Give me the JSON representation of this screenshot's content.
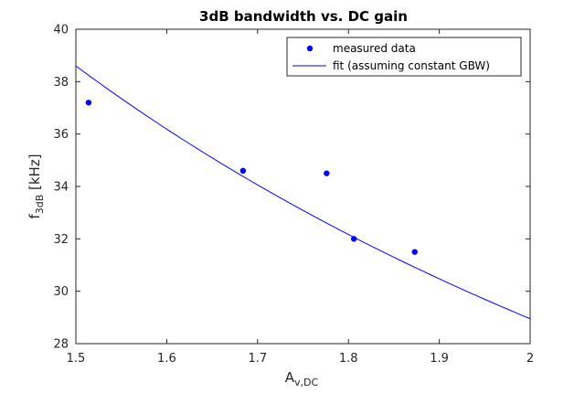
{
  "chart_data": {
    "type": "scatter",
    "title": "3dB bandwidth vs. DC gain",
    "xlabel": {
      "main": "A",
      "sub": "v,DC"
    },
    "ylabel": {
      "main": "f",
      "sub": "3dB",
      "suffix": " [kHz]"
    },
    "xlim": [
      1.5,
      2.0
    ],
    "ylim": [
      28,
      40
    ],
    "xticks": [
      1.5,
      1.6,
      1.7,
      1.8,
      1.9,
      2.0
    ],
    "xtick_labels": [
      "1.5",
      "1.6",
      "1.7",
      "1.8",
      "1.9",
      "2"
    ],
    "yticks": [
      28,
      30,
      32,
      34,
      36,
      38,
      40
    ],
    "ytick_labels": [
      "28",
      "30",
      "32",
      "34",
      "36",
      "38",
      "40"
    ],
    "grid": false,
    "legend_position": "top-right",
    "series": [
      {
        "name": "measured data",
        "kind": "markers",
        "color": "#0000ff",
        "x": [
          1.514,
          1.684,
          1.776,
          1.806,
          1.873
        ],
        "y": [
          37.2,
          34.6,
          34.5,
          32.0,
          31.5
        ]
      },
      {
        "name": "fit (assuming constant GBW)",
        "kind": "line",
        "color": "#0000ff",
        "gbw": 57.9,
        "x_range": [
          1.5,
          2.0
        ]
      }
    ]
  }
}
